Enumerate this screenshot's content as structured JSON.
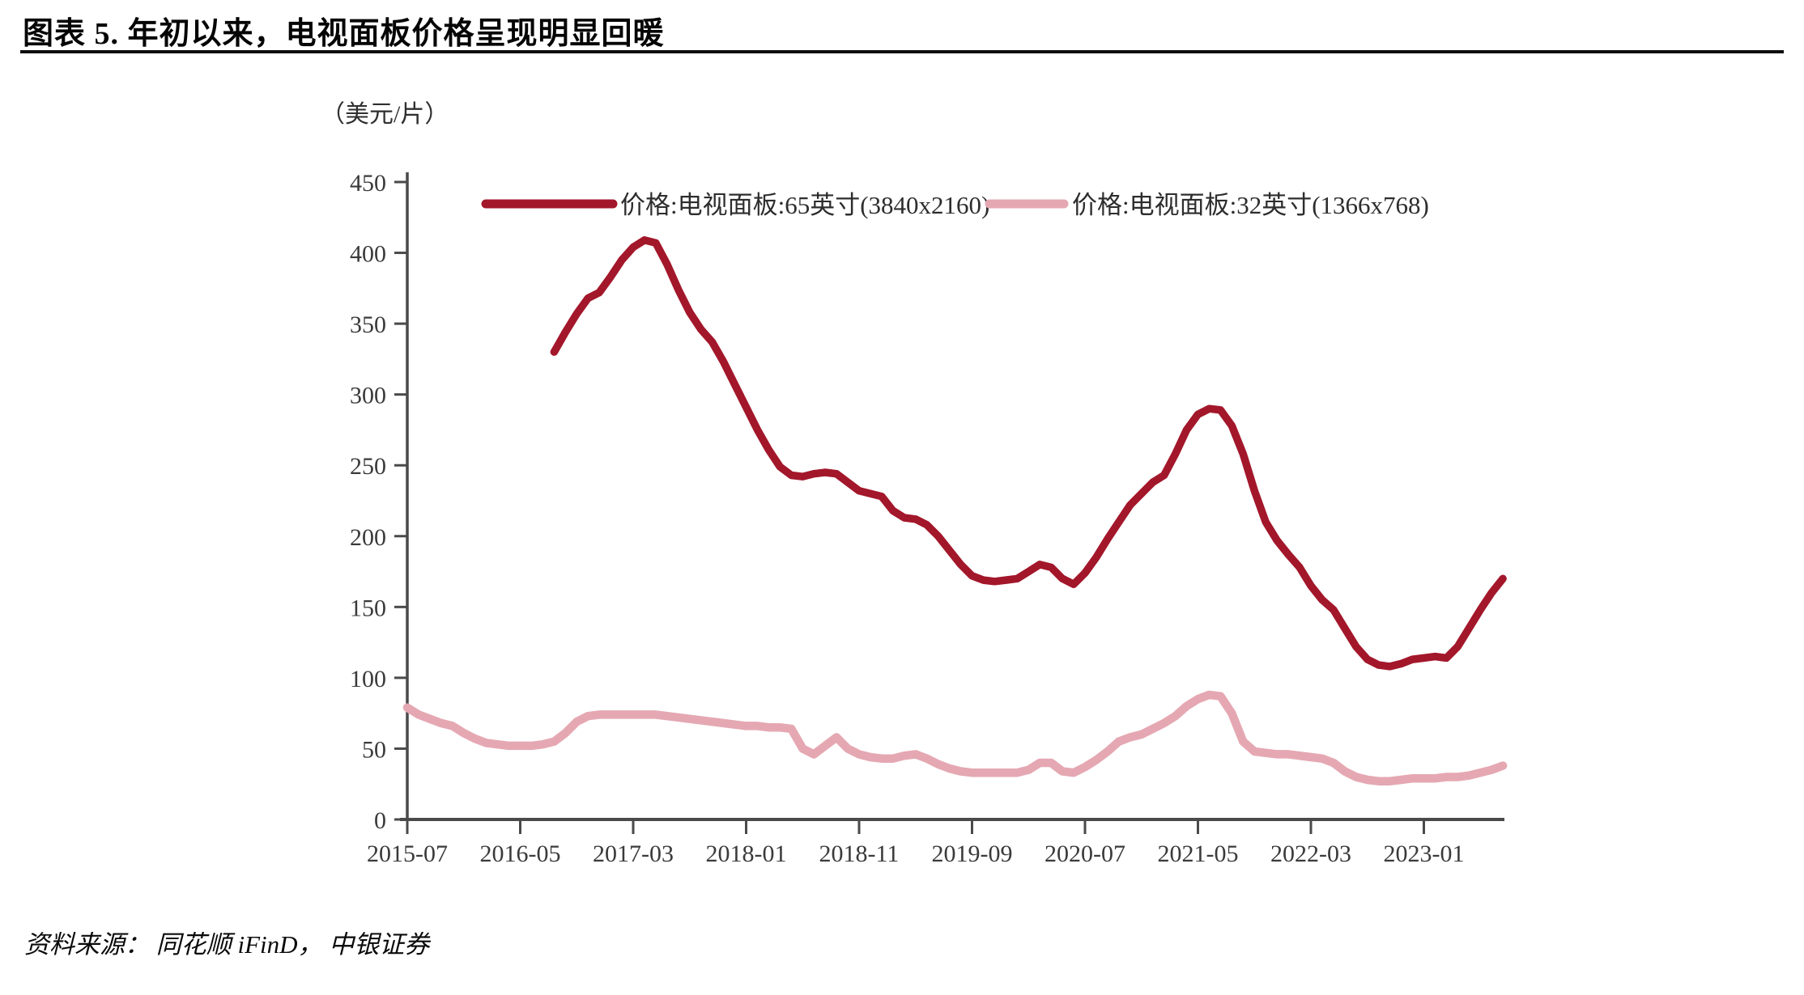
{
  "title": "图表 5. 年初以来，电视面板价格呈现明显回暖",
  "source": "资料来源： 同花顺 iFinD， 中银证券",
  "chart_data": {
    "type": "line",
    "title": "图表 5. 年初以来，电视面板价格呈现明显回暖",
    "unit_label": "（美元/片）",
    "xlabel": "",
    "ylabel": "美元/片",
    "ylim": [
      0,
      450
    ],
    "yticks": [
      0,
      50,
      100,
      150,
      200,
      250,
      300,
      350,
      400,
      450
    ],
    "grid": false,
    "legend_position": "top-inside",
    "axis_color": "#4a4a4a",
    "tick_label_color": "#3a3a3a",
    "x_months": [
      "2015-07",
      "2015-08",
      "2015-09",
      "2015-10",
      "2015-11",
      "2015-12",
      "2016-01",
      "2016-02",
      "2016-03",
      "2016-04",
      "2016-05",
      "2016-06",
      "2016-07",
      "2016-08",
      "2016-09",
      "2016-10",
      "2016-11",
      "2016-12",
      "2017-01",
      "2017-02",
      "2017-03",
      "2017-04",
      "2017-05",
      "2017-06",
      "2017-07",
      "2017-08",
      "2017-09",
      "2017-10",
      "2017-11",
      "2017-12",
      "2018-01",
      "2018-02",
      "2018-03",
      "2018-04",
      "2018-05",
      "2018-06",
      "2018-07",
      "2018-08",
      "2018-09",
      "2018-10",
      "2018-11",
      "2018-12",
      "2019-01",
      "2019-02",
      "2019-03",
      "2019-04",
      "2019-05",
      "2019-06",
      "2019-07",
      "2019-08",
      "2019-09",
      "2019-10",
      "2019-11",
      "2019-12",
      "2020-01",
      "2020-02",
      "2020-03",
      "2020-04",
      "2020-05",
      "2020-06",
      "2020-07",
      "2020-08",
      "2020-09",
      "2020-10",
      "2020-11",
      "2020-12",
      "2021-01",
      "2021-02",
      "2021-03",
      "2021-04",
      "2021-05",
      "2021-06",
      "2021-07",
      "2021-08",
      "2021-09",
      "2021-10",
      "2021-11",
      "2021-12",
      "2022-01",
      "2022-02",
      "2022-03",
      "2022-04",
      "2022-05",
      "2022-06",
      "2022-07",
      "2022-08",
      "2022-09",
      "2022-10",
      "2022-11",
      "2022-12",
      "2023-01",
      "2023-02",
      "2023-03",
      "2023-04",
      "2023-05",
      "2023-06",
      "2023-07",
      "2023-08"
    ],
    "xticks": [
      {
        "index": 0,
        "label": "2015-07"
      },
      {
        "index": 10,
        "label": "2016-05"
      },
      {
        "index": 20,
        "label": "2017-03"
      },
      {
        "index": 30,
        "label": "2018-01"
      },
      {
        "index": 40,
        "label": "2018-11"
      },
      {
        "index": 50,
        "label": "2019-09"
      },
      {
        "index": 60,
        "label": "2020-07"
      },
      {
        "index": 70,
        "label": "2021-05"
      },
      {
        "index": 80,
        "label": "2022-03"
      },
      {
        "index": 90,
        "label": "2023-01"
      }
    ],
    "series": [
      {
        "id": "65inch",
        "name": "价格:电视面板:65英寸(3840x2160)",
        "color": "#A3172B",
        "stroke_width": 9.5,
        "values": [
          null,
          null,
          null,
          null,
          null,
          null,
          null,
          null,
          null,
          null,
          null,
          null,
          null,
          330,
          344,
          357,
          368,
          372,
          383,
          395,
          404,
          409,
          407,
          392,
          374,
          358,
          346,
          337,
          323,
          307,
          291,
          275,
          261,
          249,
          243,
          242,
          244,
          245,
          244,
          238,
          232,
          230,
          228,
          218,
          213,
          212,
          208,
          200,
          190,
          180,
          172,
          169,
          168,
          169,
          170,
          175,
          180,
          178,
          170,
          166,
          174,
          185,
          198,
          210,
          222,
          230,
          238,
          243,
          258,
          275,
          286,
          290,
          289,
          278,
          258,
          232,
          210,
          197,
          187,
          178,
          165,
          155,
          148,
          135,
          122,
          113,
          109,
          108,
          110,
          113,
          114,
          115,
          114,
          122,
          135,
          148,
          160,
          170
        ]
      },
      {
        "id": "32inch",
        "name": "价格:电视面板:32英寸(1366x768)",
        "color": "#E5A8B2",
        "stroke_width": 10.5,
        "values": [
          79,
          74,
          71,
          68,
          66,
          61,
          57,
          54,
          53,
          52,
          52,
          52,
          53,
          55,
          61,
          69,
          73,
          74,
          74,
          74,
          74,
          74,
          74,
          73,
          72,
          71,
          70,
          69,
          68,
          67,
          66,
          66,
          65,
          65,
          64,
          50,
          46,
          52,
          58,
          50,
          46,
          44,
          43,
          43,
          45,
          46,
          43,
          39,
          36,
          34,
          33,
          33,
          33,
          33,
          33,
          35,
          40,
          40,
          34,
          33,
          37,
          42,
          48,
          55,
          58,
          60,
          64,
          68,
          73,
          80,
          85,
          88,
          87,
          75,
          55,
          48,
          47,
          46,
          46,
          45,
          44,
          43,
          40,
          34,
          30,
          28,
          27,
          27,
          28,
          29,
          29,
          29,
          30,
          30,
          31,
          33,
          35,
          38
        ]
      }
    ]
  }
}
